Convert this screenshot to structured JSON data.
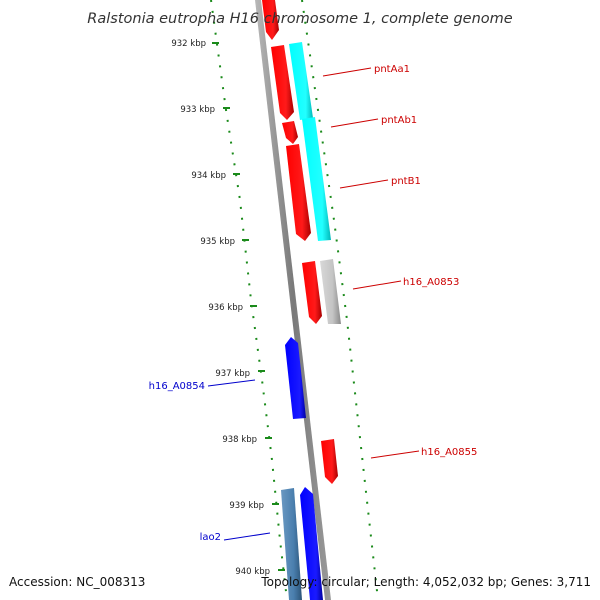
{
  "title": "Ralstonia eutropha H16 chromosome 1, complete genome",
  "footer": {
    "accession": "Accession: NC_008313",
    "topology": "Topology: circular; Length: 4,052,032 bp; Genes: 3,711"
  },
  "ticks": [
    "932 kbp",
    "933 kbp",
    "934 kbp",
    "935 kbp",
    "936 kbp",
    "937 kbp",
    "938 kbp",
    "939 kbp",
    "940 kbp"
  ],
  "gene_labels": {
    "pntAa1": "pntAa1",
    "pntAb1": "pntAb1",
    "pntB1": "pntB1",
    "h16_A0853": "h16_A0853",
    "h16_A0854": "h16_A0854",
    "h16_A0855": "h16_A0855",
    "lao2": "lao2"
  },
  "colors": {
    "red": "#ff0000",
    "cyan": "#00ffff",
    "blue": "#0000ff",
    "gray": "#c0c0c0",
    "steel": "#4a7fae",
    "backbone": "#808080",
    "dots": "#1a8a1a",
    "label_red": "#cc0000",
    "label_blue": "#0000cc"
  }
}
